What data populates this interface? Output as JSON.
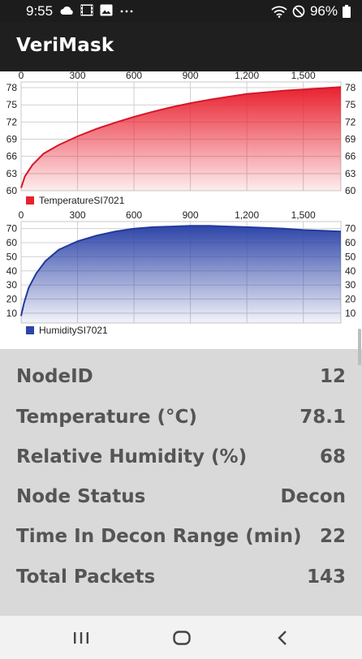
{
  "status_bar": {
    "time": "9:55",
    "battery": "96%"
  },
  "app": {
    "title": "VeriMask"
  },
  "temperature_chart": {
    "x_ticks": [
      "0",
      "300",
      "600",
      "900",
      "1,200",
      "1,500"
    ],
    "y_ticks": [
      "60",
      "63",
      "66",
      "69",
      "72",
      "75",
      "78"
    ],
    "legend": "TemperatureSI7021",
    "color": "#e8212f"
  },
  "humidity_chart": {
    "x_ticks": [
      "0",
      "300",
      "600",
      "900",
      "1,200",
      "1,500"
    ],
    "y_ticks": [
      "10",
      "20",
      "30",
      "40",
      "50",
      "60",
      "70"
    ],
    "legend": "HumiditySI7021",
    "color": "#2e45a8"
  },
  "chart_data": [
    {
      "type": "area",
      "series": [
        {
          "name": "TemperatureSI7021",
          "x": [
            0,
            20,
            60,
            120,
            200,
            300,
            400,
            500,
            600,
            700,
            800,
            900,
            1000,
            1100,
            1200,
            1300,
            1400,
            1500,
            1600,
            1700
          ],
          "y": [
            60.5,
            62.5,
            64.5,
            66.5,
            68.0,
            69.5,
            70.8,
            71.9,
            72.9,
            73.8,
            74.6,
            75.3,
            75.9,
            76.4,
            76.9,
            77.2,
            77.5,
            77.7,
            77.9,
            78.1
          ]
        }
      ],
      "xlim": [
        0,
        1700
      ],
      "ylim": [
        60,
        79
      ],
      "legend_position": "bottom-left",
      "grid": true
    },
    {
      "type": "area",
      "series": [
        {
          "name": "HumiditySI7021",
          "x": [
            0,
            15,
            40,
            80,
            130,
            200,
            300,
            400,
            500,
            600,
            700,
            800,
            900,
            1000,
            1100,
            1200,
            1300,
            1400,
            1500,
            1600,
            1700
          ],
          "y": [
            8,
            17,
            28,
            38,
            47,
            55,
            61,
            65,
            68,
            70,
            71,
            71.5,
            72,
            72,
            71.5,
            71,
            70.5,
            70,
            69,
            68.5,
            68
          ]
        }
      ],
      "xlim": [
        0,
        1700
      ],
      "ylim": [
        3,
        75
      ],
      "legend_position": "bottom-left",
      "grid": true
    }
  ],
  "readings": [
    {
      "label": "NodeID",
      "value": "12"
    },
    {
      "label": "Temperature (°C)",
      "value": "78.1"
    },
    {
      "label": "Relative Humidity (%)",
      "value": "68"
    },
    {
      "label": "Node Status",
      "value": "Decon"
    },
    {
      "label": "Time In Decon Range (min)",
      "value": "22"
    },
    {
      "label": "Total Packets",
      "value": "143"
    }
  ]
}
